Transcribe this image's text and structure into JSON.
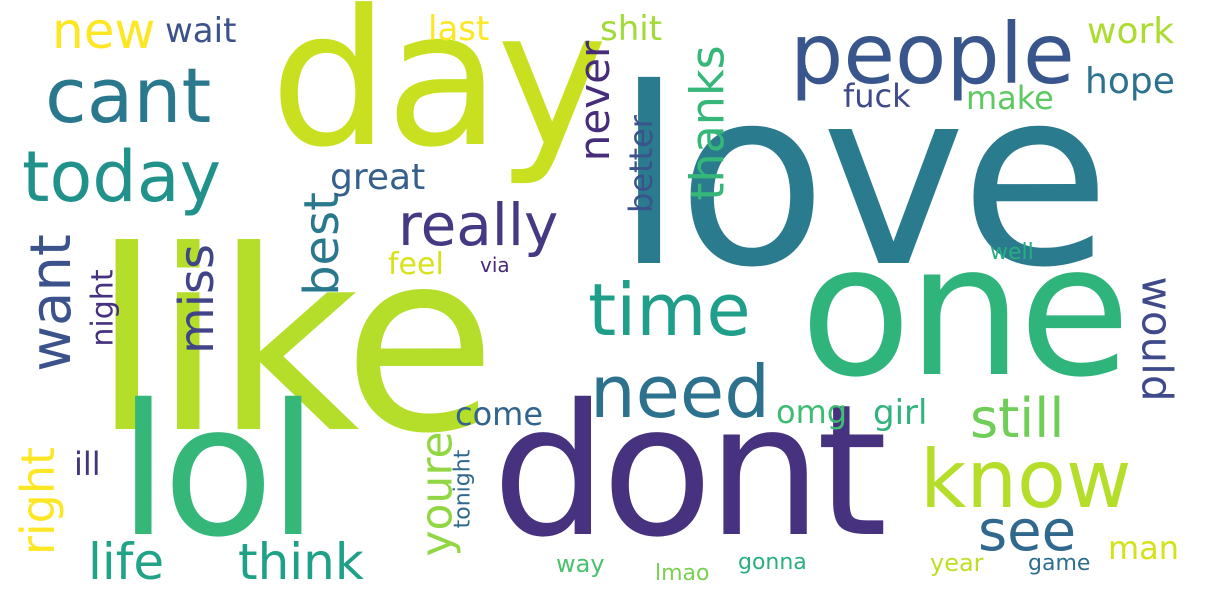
{
  "words": [
    {
      "text": "love",
      "color": "#2a7b8e"
    },
    {
      "text": "like",
      "color": "#b5de2b"
    },
    {
      "text": "day",
      "color": "#c8e020"
    },
    {
      "text": "one",
      "color": "#2fb47c"
    },
    {
      "text": "lol",
      "color": "#35b779"
    },
    {
      "text": "dont",
      "color": "#46327e"
    },
    {
      "text": "people",
      "color": "#39568c"
    },
    {
      "text": "cant",
      "color": "#2a788e"
    },
    {
      "text": "today",
      "color": "#21918c"
    },
    {
      "text": "know",
      "color": "#b5de2b"
    },
    {
      "text": "time",
      "color": "#1f9e89"
    },
    {
      "text": "need",
      "color": "#2c728e"
    },
    {
      "text": "really",
      "color": "#443983"
    },
    {
      "text": "want",
      "color": "#3b528b"
    },
    {
      "text": "see",
      "color": "#31688e"
    },
    {
      "text": "still",
      "color": "#6ece58"
    },
    {
      "text": "thanks",
      "color": "#35b779"
    },
    {
      "text": "new",
      "color": "#fde725"
    },
    {
      "text": "miss",
      "color": "#414487"
    },
    {
      "text": "best",
      "color": "#2a788e"
    },
    {
      "text": "life",
      "color": "#20a386"
    },
    {
      "text": "think",
      "color": "#1fa187"
    },
    {
      "text": "right",
      "color": "#fde725"
    },
    {
      "text": "youre",
      "color": "#90d743"
    },
    {
      "text": "never",
      "color": "#472c7a"
    },
    {
      "text": "would",
      "color": "#3e4a89"
    },
    {
      "text": "great",
      "color": "#355f8d"
    },
    {
      "text": "wait",
      "color": "#3b528b"
    },
    {
      "text": "last",
      "color": "#fde725"
    },
    {
      "text": "shit",
      "color": "#a2da37"
    },
    {
      "text": "work",
      "color": "#addc30"
    },
    {
      "text": "hope",
      "color": "#2c728e"
    },
    {
      "text": "make",
      "color": "#5ec962"
    },
    {
      "text": "fuck",
      "color": "#3e4a89"
    },
    {
      "text": "better",
      "color": "#3b528b"
    },
    {
      "text": "feel",
      "color": "#d8e219"
    },
    {
      "text": "via",
      "color": "#482878"
    },
    {
      "text": "night",
      "color": "#46327e"
    },
    {
      "text": "come",
      "color": "#32648e"
    },
    {
      "text": "omg",
      "color": "#3fbc73"
    },
    {
      "text": "girl",
      "color": "#2fb47c"
    },
    {
      "text": "ill",
      "color": "#453581"
    },
    {
      "text": "tonight",
      "color": "#31688e"
    },
    {
      "text": "man",
      "color": "#d2e21b"
    },
    {
      "text": "way",
      "color": "#4ac16d"
    },
    {
      "text": "lmao",
      "color": "#7ad151"
    },
    {
      "text": "gonna",
      "color": "#2ab07f"
    },
    {
      "text": "year",
      "color": "#bddf26"
    },
    {
      "text": "game",
      "color": "#2e6e8e"
    },
    {
      "text": "well",
      "color": "#28ae80"
    }
  ]
}
